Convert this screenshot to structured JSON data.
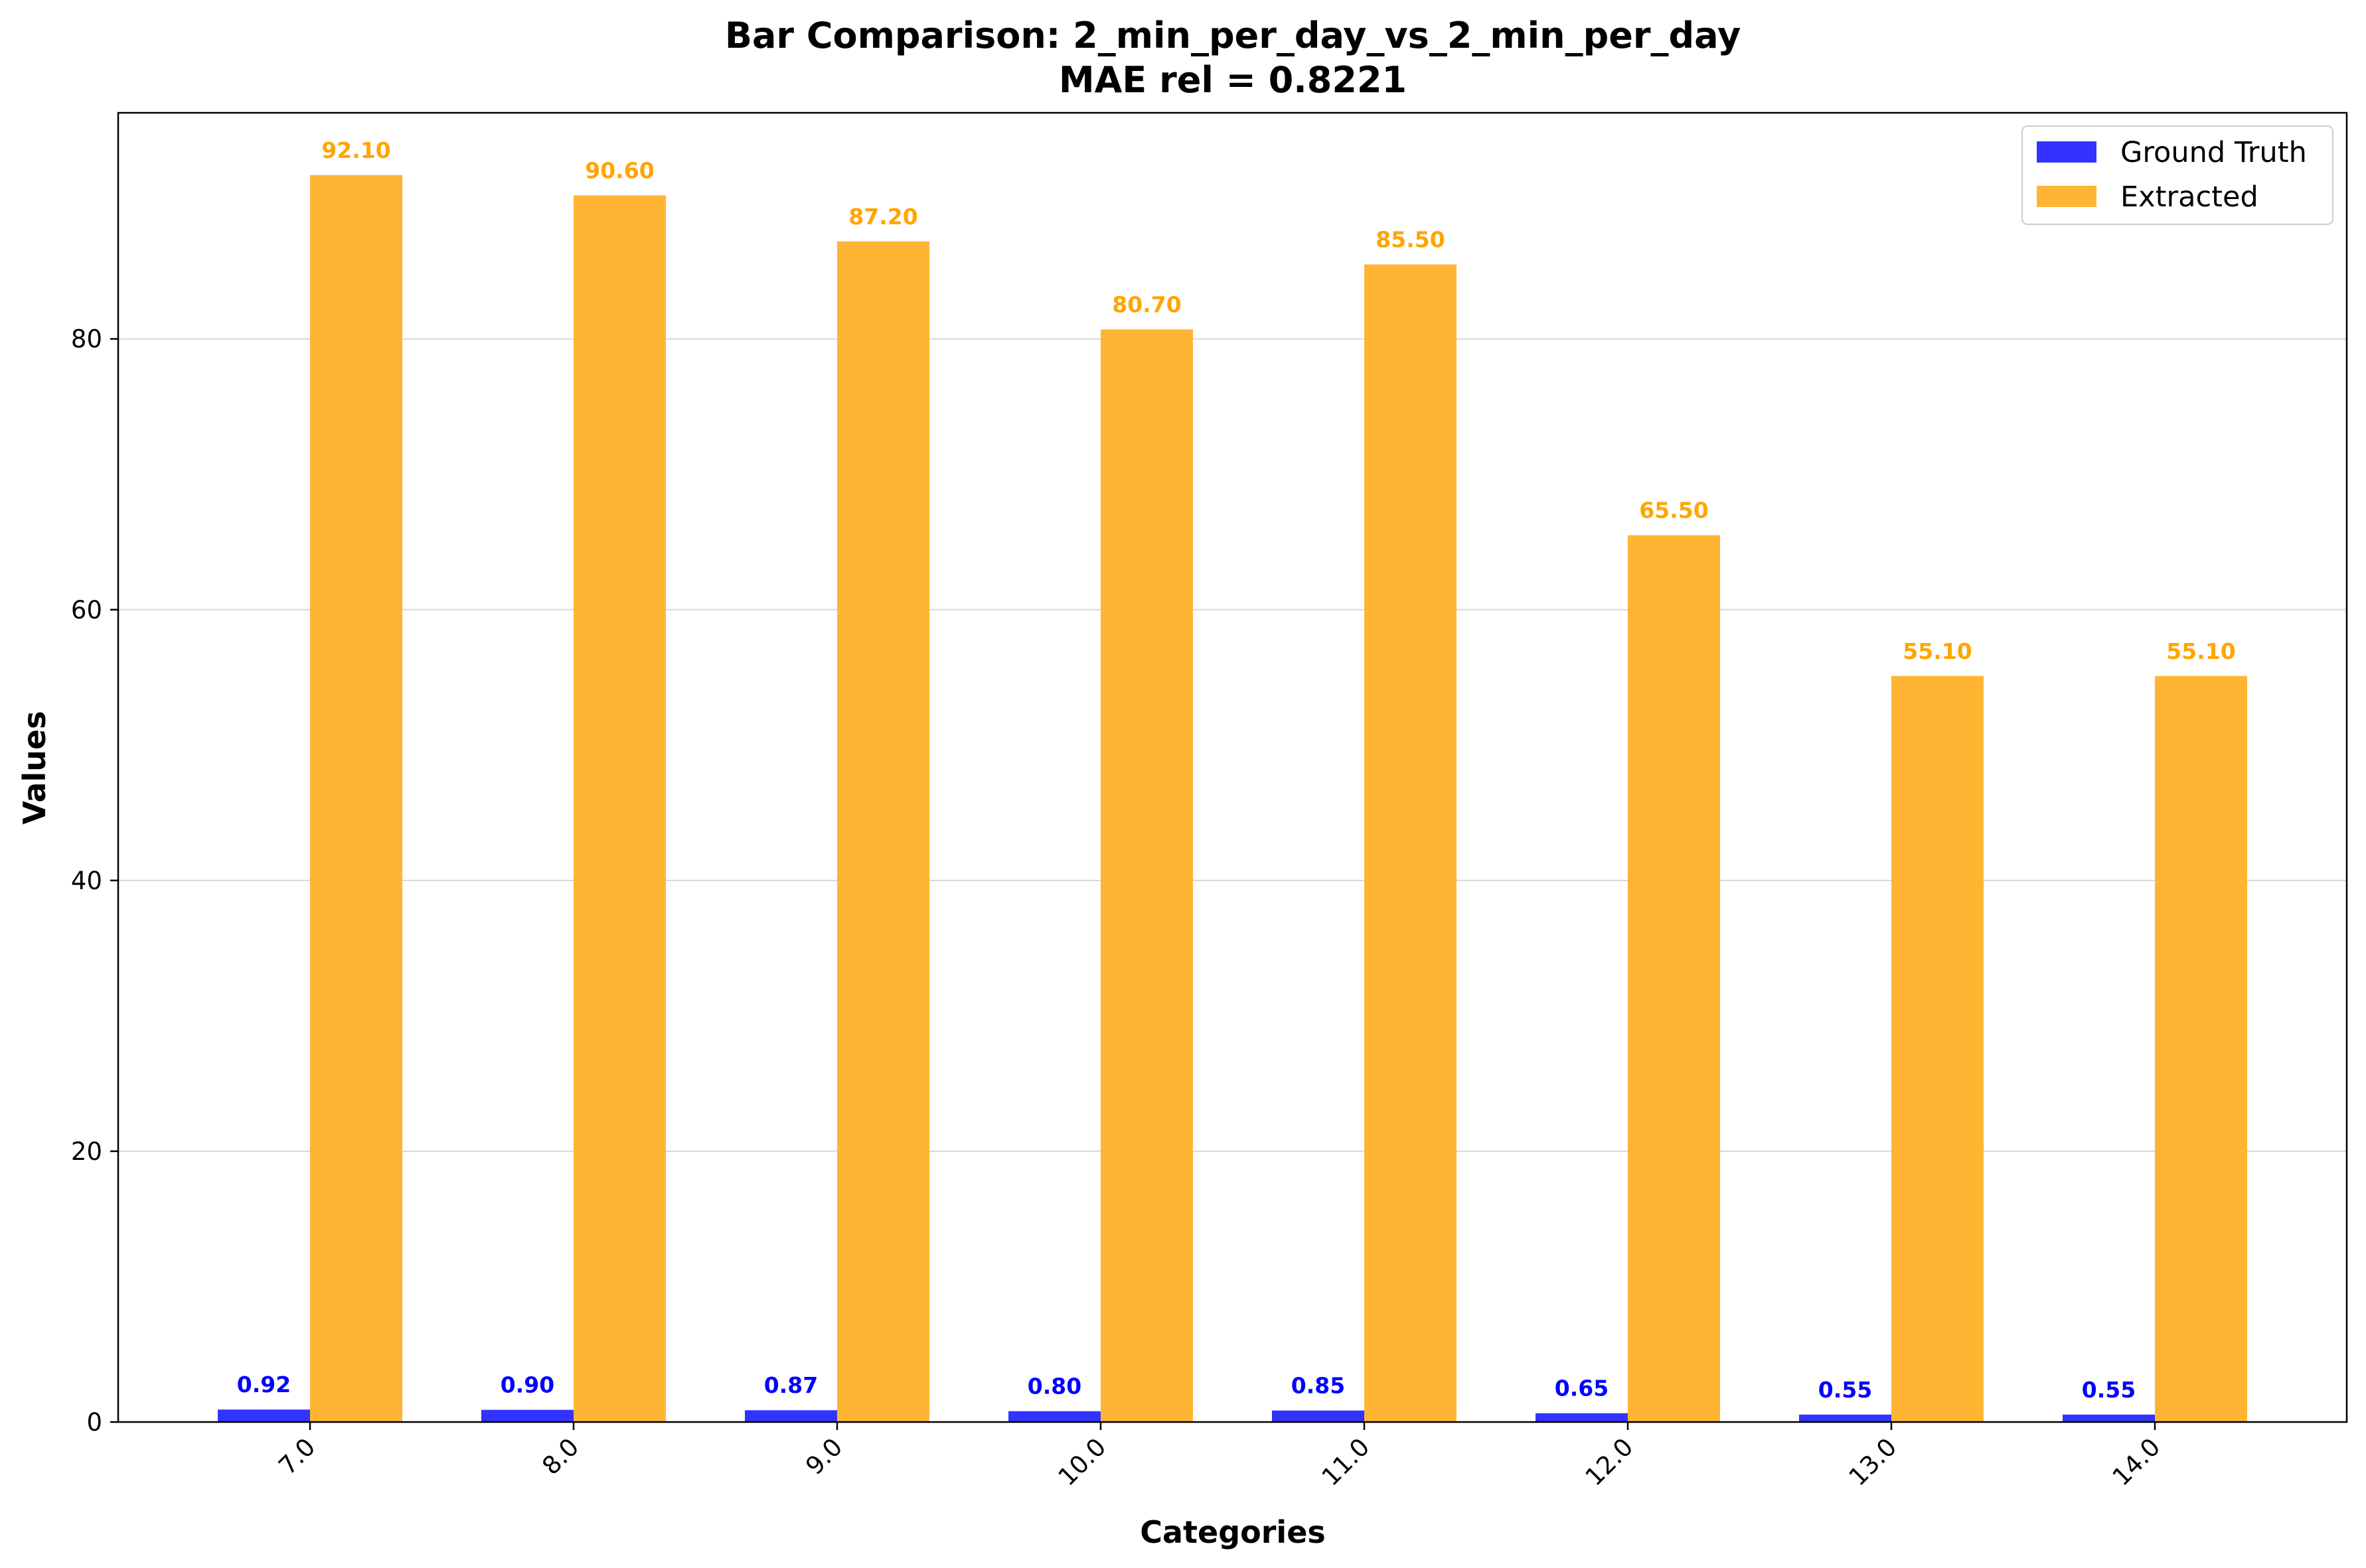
{
  "chart_data": {
    "type": "bar",
    "title_line1": "Bar Comparison: 2_min_per_day_vs_2_min_per_day",
    "title_line2": "MAE rel = 0.8221",
    "xlabel": "Categories",
    "ylabel": "Values",
    "categories": [
      "7.0",
      "8.0",
      "9.0",
      "10.0",
      "11.0",
      "12.0",
      "13.0",
      "14.0"
    ],
    "series": [
      {
        "name": "Ground Truth",
        "color": "#3333ff",
        "label_color": "#0000ff",
        "values": [
          0.92,
          0.9,
          0.87,
          0.8,
          0.85,
          0.65,
          0.55,
          0.55
        ],
        "labels": [
          "0.92",
          "0.90",
          "0.87",
          "0.80",
          "0.85",
          "0.65",
          "0.55",
          "0.55"
        ]
      },
      {
        "name": "Extracted",
        "color": "#ffb533",
        "label_color": "#ffa500",
        "values": [
          92.1,
          90.6,
          87.2,
          80.7,
          85.5,
          65.5,
          55.1,
          55.1
        ],
        "labels": [
          "92.10",
          "90.60",
          "87.20",
          "80.70",
          "85.50",
          "65.50",
          "55.10",
          "55.10"
        ]
      }
    ],
    "yticks": [
      "0",
      "20",
      "40",
      "60",
      "80"
    ],
    "ylim": [
      0,
      96.7
    ],
    "grid": "horizontal",
    "legend_position": "top-right"
  }
}
